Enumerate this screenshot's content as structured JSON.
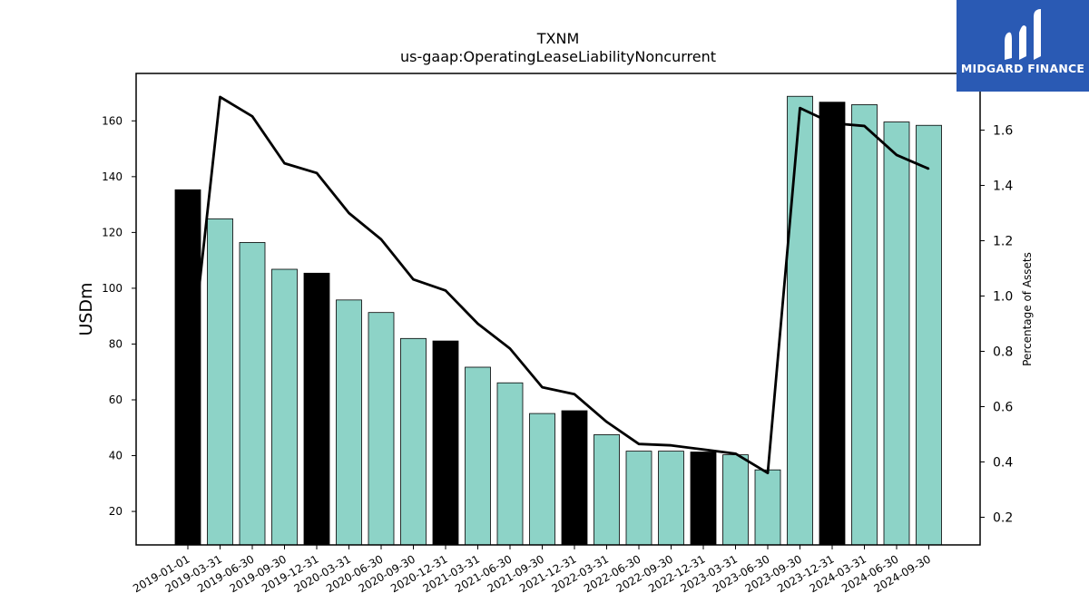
{
  "brand": {
    "name": "MIDGARD FINANCE",
    "logo_bg": "#2a5ab4",
    "logo_fg": "#ffffff",
    "icon": "midgard-m-logo-icon"
  },
  "chart_data": {
    "type": "bar",
    "title": "TXNM",
    "subtitle": "us-gaap:OperatingLeaseLiabilityNoncurrent",
    "ylabel": "USDm",
    "y2label": "Percentage of Assets",
    "ylim": [
      8,
      177
    ],
    "y2lim": [
      0.1,
      1.805
    ],
    "yticks": [
      20,
      40,
      60,
      80,
      100,
      120,
      140,
      160
    ],
    "y2ticks": [
      0.2,
      0.4,
      0.6,
      0.8,
      1.0,
      1.2,
      1.4,
      1.6
    ],
    "y2tick_labels": [
      "0.2",
      "0.4",
      "0.6",
      "0.8",
      "1.0",
      "1.2",
      "1.4",
      "1.6"
    ],
    "categories": [
      "2019-01-01",
      "2019-03-31",
      "2019-06-30",
      "2019-09-30",
      "2019-12-31",
      "2020-03-31",
      "2020-06-30",
      "2020-09-30",
      "2020-12-31",
      "2021-03-31",
      "2021-06-30",
      "2021-09-30",
      "2021-12-31",
      "2022-03-31",
      "2022-06-30",
      "2022-09-30",
      "2022-12-31",
      "2023-03-31",
      "2023-06-30",
      "2023-09-30",
      "2023-12-31",
      "2024-03-31",
      "2024-06-30",
      "2024-09-30"
    ],
    "series": [
      {
        "kind": "bar",
        "axis": "left",
        "values": [
          135.3,
          124.9,
          116.4,
          106.8,
          105.4,
          95.8,
          91.3,
          82.0,
          81.1,
          71.7,
          66.1,
          55.1,
          56.1,
          47.5,
          41.6,
          41.6,
          41.3,
          40.3,
          34.9,
          168.8,
          166.7,
          165.8,
          159.6,
          158.4
        ],
        "colors": [
          "#000000",
          "#8dd3c7",
          "#8dd3c7",
          "#8dd3c7",
          "#000000",
          "#8dd3c7",
          "#8dd3c7",
          "#8dd3c7",
          "#000000",
          "#8dd3c7",
          "#8dd3c7",
          "#8dd3c7",
          "#000000",
          "#8dd3c7",
          "#8dd3c7",
          "#8dd3c7",
          "#000000",
          "#8dd3c7",
          "#8dd3c7",
          "#8dd3c7",
          "#000000",
          "#8dd3c7",
          "#8dd3c7",
          "#8dd3c7"
        ]
      },
      {
        "kind": "line",
        "axis": "right",
        "color": "#000000",
        "values": [
          0.66,
          1.72,
          1.65,
          1.48,
          1.445,
          1.3,
          1.205,
          1.06,
          1.02,
          0.9,
          0.81,
          0.67,
          0.645,
          0.545,
          0.465,
          0.46,
          0.445,
          0.43,
          0.36,
          1.68,
          1.625,
          1.615,
          1.51,
          1.46
        ]
      }
    ],
    "grid": false,
    "legend": "none"
  }
}
